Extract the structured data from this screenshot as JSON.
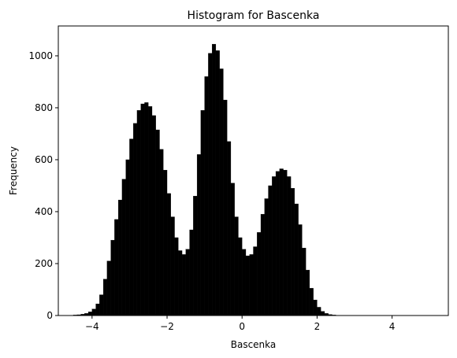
{
  "chart_data": {
    "type": "histogram",
    "title": "Histogram for Bascenka",
    "xlabel": "Bascenka",
    "ylabel": "Frequency",
    "xlim": [
      -4.9,
      5.5
    ],
    "ylim": [
      0,
      1115
    ],
    "x_ticks": [
      -4,
      -2,
      0,
      2,
      4
    ],
    "x_tick_labels": [
      "−4",
      "−2",
      "0",
      "2",
      "4"
    ],
    "y_ticks": [
      0,
      200,
      400,
      600,
      800,
      1000
    ],
    "y_tick_labels": [
      "0",
      "200",
      "400",
      "600",
      "800",
      "1000"
    ],
    "bar_color": "#000000",
    "bins": {
      "start": -4.6,
      "width": 0.1,
      "counts": [
        1,
        2,
        3,
        5,
        8,
        14,
        25,
        45,
        80,
        140,
        210,
        290,
        370,
        445,
        525,
        600,
        680,
        740,
        790,
        815,
        820,
        805,
        770,
        715,
        640,
        560,
        470,
        380,
        300,
        250,
        235,
        255,
        330,
        460,
        620,
        790,
        920,
        1010,
        1045,
        1020,
        950,
        830,
        670,
        510,
        380,
        300,
        255,
        230,
        235,
        265,
        320,
        390,
        450,
        500,
        535,
        555,
        565,
        560,
        535,
        490,
        430,
        350,
        260,
        175,
        105,
        60,
        32,
        16,
        8,
        4,
        2,
        1
      ]
    }
  }
}
